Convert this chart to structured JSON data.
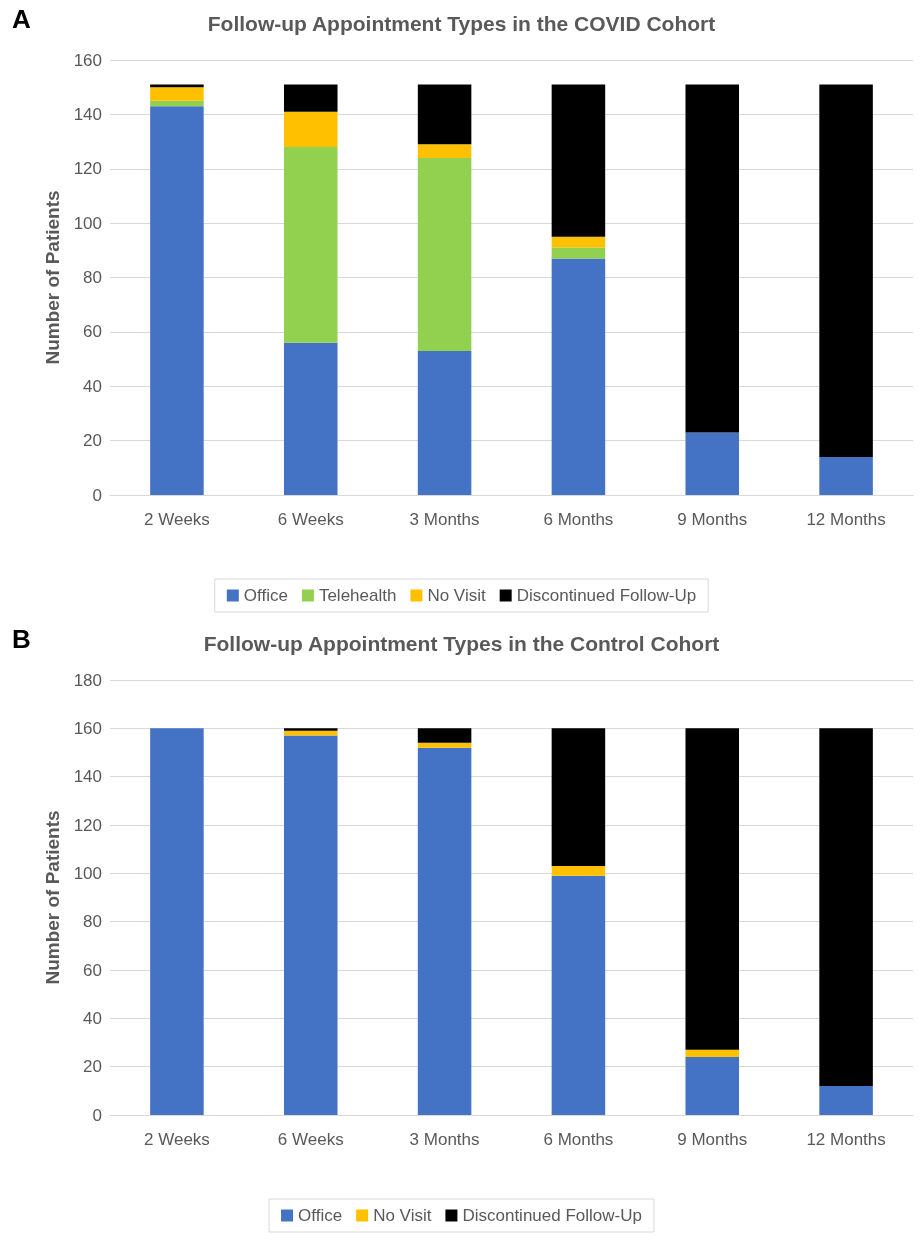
{
  "chart_data": [
    {
      "type": "bar",
      "title": "Follow-up Appointment Types in the COVID Cohort",
      "ylabel": "Number of Patients",
      "annotations": [
        "A"
      ],
      "stacked": true,
      "grid": "y",
      "legend": "bottom",
      "categories": [
        "2 Weeks",
        "6 Weeks",
        "3 Months",
        "6 Months",
        "9 Months",
        "12 Months"
      ],
      "ylim": [
        0,
        160
      ],
      "yticks": [
        0,
        20,
        40,
        60,
        80,
        100,
        120,
        140,
        160
      ],
      "series": [
        {
          "name": "Office",
          "color": "#4472c4",
          "values": [
            143,
            56,
            53,
            87,
            23,
            14
          ]
        },
        {
          "name": "Telehealth",
          "color": "#92d050",
          "values": [
            2,
            72,
            71,
            4,
            0,
            0
          ]
        },
        {
          "name": "No Visit",
          "color": "#ffc000",
          "values": [
            5,
            13,
            5,
            4,
            0,
            0
          ]
        },
        {
          "name": "Discontinued Follow-Up",
          "color": "#000000",
          "values": [
            1,
            10,
            22,
            56,
            128,
            137
          ]
        }
      ]
    },
    {
      "type": "bar",
      "title": "Follow-up Appointment Types in the Control Cohort",
      "ylabel": "Number of Patients",
      "annotations": [
        "B"
      ],
      "stacked": true,
      "grid": "y",
      "legend": "bottom",
      "categories": [
        "2 Weeks",
        "6 Weeks",
        "3 Months",
        "6 Months",
        "9 Months",
        "12 Months"
      ],
      "ylim": [
        0,
        180
      ],
      "yticks": [
        0,
        20,
        40,
        60,
        80,
        100,
        120,
        140,
        160,
        180
      ],
      "series": [
        {
          "name": "Office",
          "color": "#4472c4",
          "values": [
            160,
            157,
            152,
            99,
            24,
            12
          ]
        },
        {
          "name": "No Visit",
          "color": "#ffc000",
          "values": [
            0,
            2,
            2,
            4,
            3,
            0
          ]
        },
        {
          "name": "Discontinued Follow-Up",
          "color": "#000000",
          "values": [
            0,
            1,
            6,
            57,
            133,
            148
          ]
        }
      ]
    }
  ]
}
